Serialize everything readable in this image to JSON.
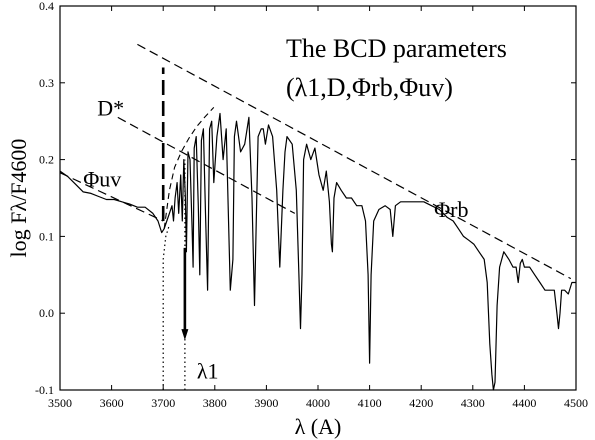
{
  "chart_data": {
    "type": "line",
    "title": "The BCD parameters",
    "subtitle": "(λ1,D,Φrb,Φuv)",
    "xlabel": "λ (A)",
    "ylabel": "log Fλ/F4600",
    "xlim": [
      3500,
      4500
    ],
    "ylim": [
      -0.1,
      0.4
    ],
    "xticks": [
      3500,
      3600,
      3700,
      3800,
      3900,
      4000,
      4100,
      4200,
      4300,
      4400,
      4500
    ],
    "yticks": [
      "-0.1",
      "0.0",
      "0.1",
      "0.2",
      "0.3",
      "0.4"
    ],
    "grid": false,
    "series": [
      {
        "kind": "spectrum",
        "x": [
          3500,
          3515,
          3530,
          3545,
          3560,
          3575,
          3590,
          3605,
          3620,
          3635,
          3650,
          3665,
          3680,
          3690,
          3697,
          3702,
          3707,
          3712,
          3717,
          3720,
          3723,
          3727,
          3730,
          3734,
          3737,
          3740,
          3743,
          3745,
          3748,
          3752,
          3756,
          3758,
          3760,
          3764,
          3768,
          3771,
          3774,
          3778,
          3782,
          3786,
          3790,
          3794,
          3798,
          3804,
          3810,
          3816,
          3822,
          3830,
          3835,
          3838,
          3842,
          3850,
          3858,
          3866,
          3872,
          3877,
          3880,
          3884,
          3890,
          3894,
          3898,
          3904,
          3912,
          3920,
          3926,
          3932,
          3936,
          3940,
          3950,
          3958,
          3963,
          3966,
          3969,
          3972,
          3978,
          3986,
          3994,
          4002,
          4010,
          4016,
          4022,
          4026,
          4028,
          4031,
          4036,
          4045,
          4055,
          4065,
          4075,
          4085,
          4092,
          4097,
          4100,
          4103,
          4108,
          4118,
          4130,
          4140,
          4145,
          4150,
          4160,
          4175,
          4190,
          4205,
          4220,
          4235,
          4250,
          4262,
          4272,
          4282,
          4292,
          4302,
          4312,
          4322,
          4328,
          4333,
          4337,
          4340,
          4343,
          4347,
          4352,
          4360,
          4370,
          4378,
          4384,
          4388,
          4392,
          4396,
          4400,
          4410,
          4420,
          4430,
          4440,
          4450,
          4458,
          4463,
          4466,
          4469,
          4472,
          4478,
          4485,
          4492,
          4500
        ],
        "y": [
          0.185,
          0.178,
          0.168,
          0.158,
          0.156,
          0.152,
          0.148,
          0.148,
          0.145,
          0.142,
          0.138,
          0.138,
          0.13,
          0.12,
          0.105,
          0.11,
          0.12,
          0.13,
          0.14,
          0.12,
          0.15,
          0.17,
          0.13,
          0.18,
          0.12,
          0.2,
          0.15,
          0.08,
          0.21,
          0.2,
          0.11,
          0.06,
          0.215,
          0.23,
          0.14,
          0.05,
          0.225,
          0.24,
          0.13,
          0.03,
          0.24,
          0.25,
          0.17,
          0.23,
          0.26,
          0.2,
          0.24,
          0.03,
          0.07,
          0.23,
          0.25,
          0.21,
          0.22,
          0.255,
          0.15,
          0.01,
          0.11,
          0.23,
          0.24,
          0.24,
          0.22,
          0.245,
          0.23,
          0.16,
          0.06,
          0.16,
          0.21,
          0.23,
          0.22,
          0.16,
          0.05,
          -0.02,
          0.05,
          0.2,
          0.22,
          0.2,
          0.215,
          0.18,
          0.16,
          0.185,
          0.145,
          0.09,
          0.08,
          0.15,
          0.17,
          0.16,
          0.15,
          0.15,
          0.14,
          0.14,
          0.12,
          0.05,
          -0.065,
          0.05,
          0.12,
          0.135,
          0.14,
          0.135,
          0.1,
          0.14,
          0.145,
          0.145,
          0.145,
          0.145,
          0.14,
          0.135,
          0.125,
          0.12,
          0.11,
          0.1,
          0.095,
          0.09,
          0.08,
          0.07,
          0.04,
          -0.04,
          -0.08,
          -0.1,
          -0.09,
          0.01,
          0.06,
          0.08,
          0.07,
          0.06,
          0.06,
          0.04,
          0.065,
          0.07,
          0.06,
          0.06,
          0.05,
          0.04,
          0.03,
          0.03,
          0.03,
          0.0,
          -0.02,
          0.0,
          0.03,
          0.03,
          0.025,
          0.04,
          0.04
        ]
      },
      {
        "kind": "dashed-line",
        "x": [
          3650,
          4490
        ],
        "y": [
          0.35,
          0.045
        ]
      },
      {
        "kind": "dashed-line",
        "x": [
          3612,
          3955
        ],
        "y": [
          0.255,
          0.13
        ]
      },
      {
        "kind": "dashed-line",
        "x": [
          3500,
          3700
        ],
        "y": [
          0.183,
          0.12
        ]
      },
      {
        "kind": "dashed-curve",
        "x": [
          3702,
          3712,
          3722,
          3735,
          3750,
          3765,
          3780,
          3798
        ],
        "y": [
          0.11,
          0.16,
          0.19,
          0.21,
          0.228,
          0.243,
          0.255,
          0.268
        ]
      },
      {
        "kind": "dotted-line",
        "x": [
          3700,
          3700,
          3705,
          3712
        ],
        "y": [
          -0.1,
          0.07,
          0.1,
          0.115
        ]
      },
      {
        "kind": "dotted-line",
        "x": [
          3742,
          3742
        ],
        "y": [
          -0.1,
          0.2
        ]
      }
    ],
    "d_bar": {
      "x": 3700,
      "y_from": 0.12,
      "y_to": 0.32,
      "label": "D*"
    },
    "lambda1_arrow": {
      "x": 3742,
      "y_from": 0.085,
      "y_to": -0.035,
      "label": "λ1"
    },
    "annotations": [
      {
        "text": "Φuv",
        "x": 3545,
        "y": 0.165
      },
      {
        "text": "Φrb",
        "x": 4225,
        "y": 0.125
      }
    ]
  }
}
